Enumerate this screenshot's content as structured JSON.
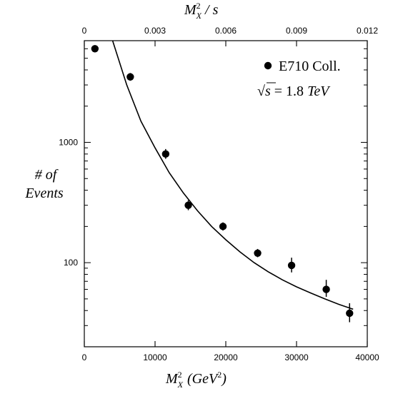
{
  "chart_data": {
    "type": "scatter",
    "title": "",
    "xlabel": {
      "main": "M",
      "sup": "2",
      "sub": "X",
      "unit_open": "(GeV",
      "unit_sup": "2",
      "unit_close": ")"
    },
    "x2label": {
      "main": "M",
      "sup": "2",
      "sub": "X",
      "rest": " / s"
    },
    "ylabel": {
      "line1": "# of",
      "line2": "Events"
    },
    "xlim": [
      0,
      40000
    ],
    "ylim": [
      20,
      7000
    ],
    "x2lim": [
      0,
      0.012
    ],
    "yscale": "log",
    "grid": false,
    "legend": {
      "position": "top-right",
      "entry": "E710 Coll.",
      "annotation": {
        "sqrt_sym": "√",
        "radicand": "s",
        "eq": " = 1.8 ",
        "unit": "TeV"
      }
    },
    "x_ticks": [
      0,
      10000,
      20000,
      30000,
      40000
    ],
    "x_tick_labels": [
      "0",
      "10000",
      "20000",
      "30000",
      "40000"
    ],
    "x2_ticks": [
      0,
      0.003,
      0.006,
      0.009,
      0.012
    ],
    "x2_tick_labels": [
      "0",
      "0.003",
      "0.006",
      "0.009",
      "0.012"
    ],
    "y_ticks": [
      100,
      1000
    ],
    "y_tick_labels": [
      "100",
      "1000"
    ],
    "series": [
      {
        "name": "E710 Coll.",
        "marker": "filled-circle",
        "color": "#000000",
        "x": [
          1500,
          6500,
          11500,
          14700,
          19600,
          24500,
          29300,
          34200,
          37500
        ],
        "y": [
          6000,
          3500,
          800,
          300,
          200,
          120,
          95,
          60,
          38
        ],
        "yerr_low": [
          5600,
          3250,
          730,
          273,
          185,
          111,
          83,
          52,
          32
        ],
        "yerr_high": [
          6420,
          3770,
          880,
          330,
          216,
          130,
          110,
          72,
          46
        ]
      }
    ],
    "fit_curve": {
      "type": "line",
      "color": "#000000",
      "x": [
        4000,
        6000,
        8000,
        10000,
        12000,
        14000,
        16000,
        18000,
        20000,
        22000,
        24000,
        26000,
        28000,
        30000,
        32000,
        34000,
        36000,
        38000
      ],
      "y": [
        7000,
        3000,
        1500,
        900,
        560,
        380,
        270,
        200,
        155,
        123,
        100,
        84,
        72,
        63,
        56,
        50,
        45,
        41
      ]
    }
  }
}
